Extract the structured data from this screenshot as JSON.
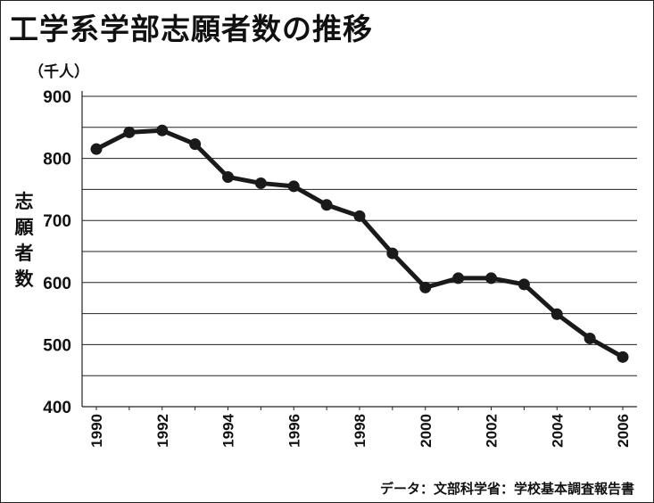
{
  "title": "工学系学部志願者数の推移",
  "unit_label": "（千人）",
  "y_axis_label": "志願者数",
  "source": "データ：文部科学省：学校基本調査報告書",
  "chart_data": {
    "type": "line",
    "title": "工学系学部志願者数の推移",
    "xlabel": "",
    "ylabel": "志願者数",
    "unit": "（千人）",
    "x": [
      1990,
      1991,
      1992,
      1993,
      1994,
      1995,
      1996,
      1997,
      1998,
      1999,
      2000,
      2001,
      2002,
      2003,
      2004,
      2005,
      2006
    ],
    "values": [
      815,
      842,
      845,
      823,
      770,
      760,
      755,
      725,
      707,
      647,
      592,
      607,
      607,
      597,
      549,
      510,
      480
    ],
    "x_tick_labels": [
      "1990",
      "1992",
      "1994",
      "1996",
      "1998",
      "2000",
      "2002",
      "2004",
      "2006"
    ],
    "y_ticks": [
      400,
      500,
      600,
      700,
      800,
      900
    ],
    "ylim": [
      400,
      900
    ],
    "xlim": [
      1990,
      2006
    ],
    "grid": true,
    "line_color": "#1a1a1a"
  }
}
